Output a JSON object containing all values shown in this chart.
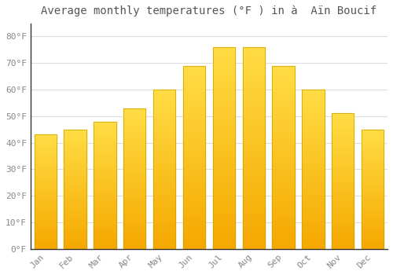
{
  "title": "Average monthly temperatures (°F ) in à  Aïn Boucif",
  "months": [
    "Jan",
    "Feb",
    "Mar",
    "Apr",
    "May",
    "Jun",
    "Jul",
    "Aug",
    "Sep",
    "Oct",
    "Nov",
    "Dec"
  ],
  "values": [
    43,
    45,
    48,
    53,
    60,
    69,
    76,
    76,
    69,
    60,
    51,
    45
  ],
  "bar_color_top": "#FFDD44",
  "bar_color_bottom": "#F5A800",
  "bar_edge_color": "#C8A000",
  "background_color": "#ffffff",
  "grid_color": "#dddddd",
  "ytick_labels": [
    "0°F",
    "10°F",
    "20°F",
    "30°F",
    "40°F",
    "50°F",
    "60°F",
    "70°F",
    "80°F"
  ],
  "ytick_values": [
    0,
    10,
    20,
    30,
    40,
    50,
    60,
    70,
    80
  ],
  "ylim": [
    0,
    85
  ],
  "tick_color": "#888888",
  "title_fontsize": 10,
  "tick_fontsize": 8,
  "bar_width": 0.75
}
